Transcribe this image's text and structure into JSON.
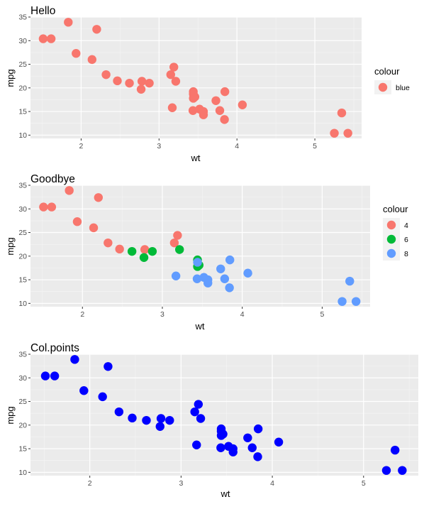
{
  "chart_data": [
    {
      "type": "scatter",
      "title": "Hello",
      "xlabel": "wt",
      "ylabel": "mpg",
      "xlim": [
        1.35,
        5.6
      ],
      "ylim": [
        9.3,
        35.0
      ],
      "x_ticks": [
        2,
        3,
        4,
        5
      ],
      "y_ticks": [
        10,
        15,
        20,
        25,
        30,
        35
      ],
      "grid": true,
      "legend": {
        "title": "colour",
        "placement": "right",
        "entries": [
          {
            "label": "blue",
            "color": "#F8766D"
          }
        ]
      },
      "series": [
        {
          "name": "blue",
          "color": "#F8766D",
          "points": [
            [
              2.62,
              21.0
            ],
            [
              2.875,
              21.0
            ],
            [
              2.32,
              22.8
            ],
            [
              3.215,
              21.4
            ],
            [
              3.44,
              18.7
            ],
            [
              3.46,
              18.1
            ],
            [
              3.57,
              14.3
            ],
            [
              3.19,
              24.4
            ],
            [
              3.15,
              22.8
            ],
            [
              3.44,
              19.2
            ],
            [
              3.44,
              17.8
            ],
            [
              4.07,
              16.4
            ],
            [
              3.73,
              17.3
            ],
            [
              3.78,
              15.2
            ],
            [
              5.25,
              10.4
            ],
            [
              5.424,
              10.4
            ],
            [
              5.345,
              14.7
            ],
            [
              2.2,
              32.4
            ],
            [
              1.615,
              30.4
            ],
            [
              1.835,
              33.9
            ],
            [
              2.465,
              21.5
            ],
            [
              3.52,
              15.5
            ],
            [
              3.435,
              15.2
            ],
            [
              3.84,
              13.3
            ],
            [
              3.845,
              19.2
            ],
            [
              1.935,
              27.3
            ],
            [
              2.14,
              26.0
            ],
            [
              1.513,
              30.4
            ],
            [
              3.17,
              15.8
            ],
            [
              2.77,
              19.7
            ],
            [
              3.57,
              15.0
            ],
            [
              2.78,
              21.4
            ]
          ]
        }
      ]
    },
    {
      "type": "scatter",
      "title": "Goodbye",
      "xlabel": "wt",
      "ylabel": "mpg",
      "xlim": [
        1.35,
        5.6
      ],
      "ylim": [
        9.3,
        35.0
      ],
      "x_ticks": [
        2,
        3,
        4,
        5
      ],
      "y_ticks": [
        10,
        15,
        20,
        25,
        30,
        35
      ],
      "grid": true,
      "legend": {
        "title": "colour",
        "placement": "right",
        "entries": [
          {
            "label": "4",
            "color": "#F8766D"
          },
          {
            "label": "6",
            "color": "#00BA38"
          },
          {
            "label": "8",
            "color": "#619CFF"
          }
        ]
      },
      "series": [
        {
          "name": "4",
          "color": "#F8766D",
          "points": [
            [
              2.32,
              22.8
            ],
            [
              3.19,
              24.4
            ],
            [
              3.15,
              22.8
            ],
            [
              2.2,
              32.4
            ],
            [
              1.615,
              30.4
            ],
            [
              1.835,
              33.9
            ],
            [
              2.465,
              21.5
            ],
            [
              1.935,
              27.3
            ],
            [
              2.14,
              26.0
            ],
            [
              1.513,
              30.4
            ],
            [
              2.78,
              21.4
            ]
          ]
        },
        {
          "name": "6",
          "color": "#00BA38",
          "points": [
            [
              2.62,
              21.0
            ],
            [
              2.875,
              21.0
            ],
            [
              3.215,
              21.4
            ],
            [
              3.46,
              18.1
            ],
            [
              3.44,
              19.2
            ],
            [
              3.44,
              17.8
            ],
            [
              2.77,
              19.7
            ]
          ]
        },
        {
          "name": "8",
          "color": "#619CFF",
          "points": [
            [
              3.44,
              18.7
            ],
            [
              3.57,
              14.3
            ],
            [
              4.07,
              16.4
            ],
            [
              3.73,
              17.3
            ],
            [
              3.78,
              15.2
            ],
            [
              5.25,
              10.4
            ],
            [
              5.424,
              10.4
            ],
            [
              5.345,
              14.7
            ],
            [
              3.52,
              15.5
            ],
            [
              3.435,
              15.2
            ],
            [
              3.84,
              13.3
            ],
            [
              3.845,
              19.2
            ],
            [
              3.17,
              15.8
            ],
            [
              3.57,
              15.0
            ]
          ]
        }
      ]
    },
    {
      "type": "scatter",
      "title": "Col.points",
      "xlabel": "wt",
      "ylabel": "mpg",
      "xlim": [
        1.35,
        5.6
      ],
      "ylim": [
        9.3,
        35.0
      ],
      "x_ticks": [
        2,
        3,
        4,
        5
      ],
      "y_ticks": [
        10,
        15,
        20,
        25,
        30,
        35
      ],
      "grid": true,
      "legend": null,
      "series": [
        {
          "color": "#0000FF",
          "points": [
            [
              2.62,
              21.0
            ],
            [
              2.875,
              21.0
            ],
            [
              2.32,
              22.8
            ],
            [
              3.215,
              21.4
            ],
            [
              3.44,
              18.7
            ],
            [
              3.46,
              18.1
            ],
            [
              3.57,
              14.3
            ],
            [
              3.19,
              24.4
            ],
            [
              3.15,
              22.8
            ],
            [
              3.44,
              19.2
            ],
            [
              3.44,
              17.8
            ],
            [
              4.07,
              16.4
            ],
            [
              3.73,
              17.3
            ],
            [
              3.78,
              15.2
            ],
            [
              5.25,
              10.4
            ],
            [
              5.424,
              10.4
            ],
            [
              5.345,
              14.7
            ],
            [
              2.2,
              32.4
            ],
            [
              1.615,
              30.4
            ],
            [
              1.835,
              33.9
            ],
            [
              2.465,
              21.5
            ],
            [
              3.52,
              15.5
            ],
            [
              3.435,
              15.2
            ],
            [
              3.84,
              13.3
            ],
            [
              3.845,
              19.2
            ],
            [
              1.935,
              27.3
            ],
            [
              2.14,
              26.0
            ],
            [
              1.513,
              30.4
            ],
            [
              3.17,
              15.8
            ],
            [
              2.77,
              19.7
            ],
            [
              3.57,
              15.0
            ],
            [
              2.78,
              21.4
            ]
          ]
        }
      ]
    }
  ]
}
